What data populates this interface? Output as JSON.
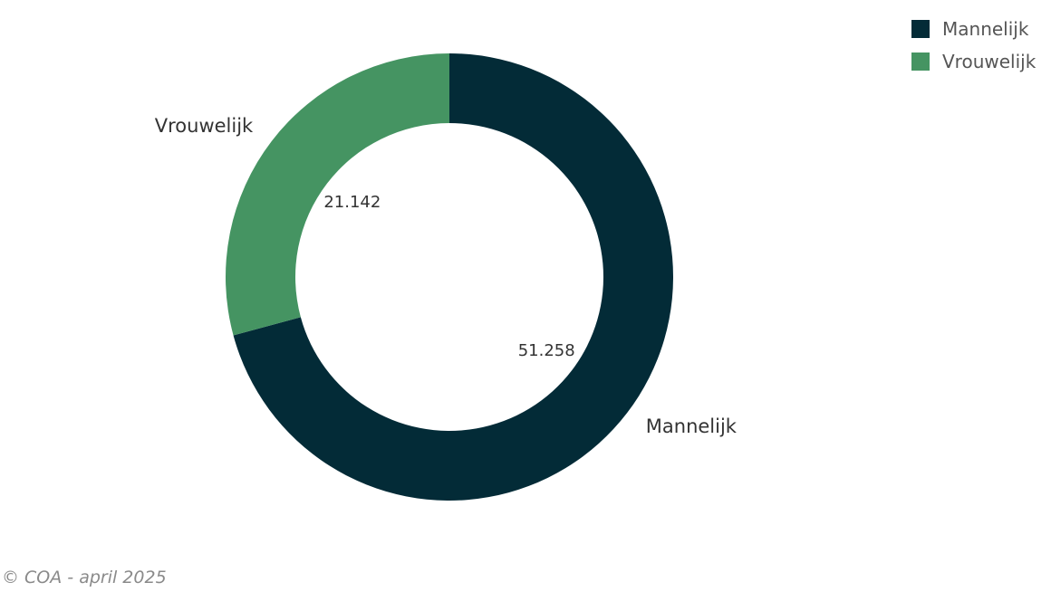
{
  "chart_data": {
    "type": "pie",
    "donut": true,
    "categories": [
      "Mannelijk",
      "Vrouwelijk"
    ],
    "values": [
      51258,
      21142
    ],
    "value_labels": [
      "51.258",
      "21.142"
    ],
    "colors": [
      "#032b37",
      "#459462"
    ],
    "legend_position": "top-right"
  },
  "legend": {
    "items": [
      {
        "label": "Mannelijk",
        "color": "#032b37"
      },
      {
        "label": "Vrouwelijk",
        "color": "#459462"
      }
    ]
  },
  "footer": {
    "text": "© COA - april 2025"
  }
}
